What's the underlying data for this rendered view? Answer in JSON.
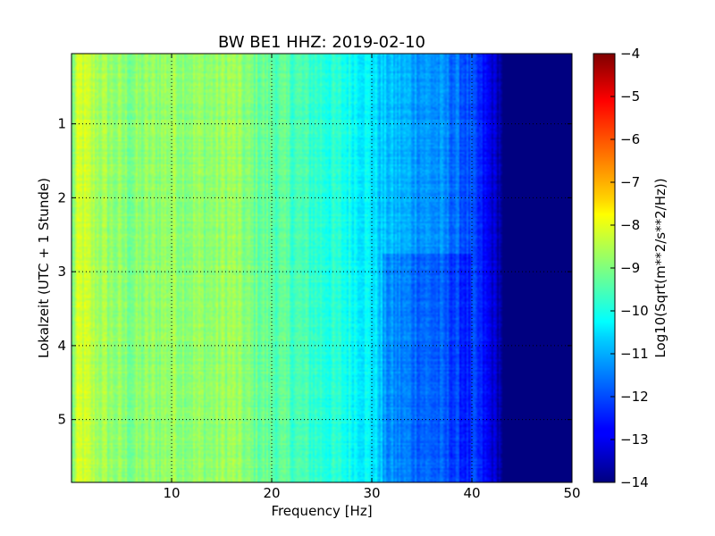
{
  "chart_data": {
    "type": "heatmap",
    "title": "BW BE1 HHZ: 2019-02-10",
    "xlabel": "Frequency [Hz]",
    "ylabel": "Lokalzeit (UTC + 1 Stunde)",
    "xlim": [
      0,
      50
    ],
    "ylim": [
      5.85,
      0.05
    ],
    "x_ticks": [
      10,
      20,
      30,
      40,
      50
    ],
    "y_ticks": [
      1,
      2,
      3,
      4,
      5
    ],
    "grid": true,
    "colorbar": {
      "label": "Log10(Sqrt(m**2/s**2/Hz))",
      "range": [
        -14,
        -4
      ],
      "ticks": [
        -4,
        -5,
        -6,
        -7,
        -8,
        -9,
        -10,
        -11,
        -12,
        -13,
        -14
      ],
      "colormap": "jet"
    },
    "spectral_profile": {
      "frequency_hz": [
        0,
        0.5,
        1,
        2,
        4,
        6,
        8,
        10,
        12,
        14,
        16,
        18,
        20,
        22,
        24,
        26,
        28,
        30,
        31,
        33,
        35,
        37,
        38.5,
        40,
        41,
        42,
        43,
        44,
        50
      ],
      "log10_amplitude": [
        -9.3,
        -8.4,
        -8.2,
        -8.5,
        -8.8,
        -9.0,
        -8.85,
        -8.7,
        -8.8,
        -8.85,
        -8.7,
        -9.1,
        -9.3,
        -9.5,
        -9.7,
        -9.9,
        -10.1,
        -10.4,
        -10.8,
        -11.0,
        -11.2,
        -11.4,
        -11.7,
        -12.1,
        -12.6,
        -13.1,
        -13.6,
        -14.0,
        -14.0
      ]
    }
  }
}
